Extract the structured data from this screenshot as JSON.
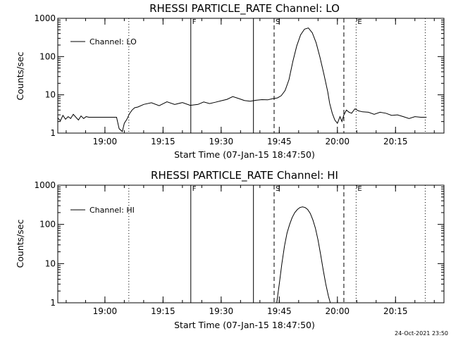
{
  "chart_data": [
    {
      "type": "line",
      "title": "RHESSI PARTICLE_RATE Channel: LO",
      "xlabel": "Start Time (07-Jan-15 18:47:50)",
      "ylabel": "Counts/sec",
      "y_scale": "log",
      "ylim": [
        1,
        1000
      ],
      "xlim": [
        "18:47:50",
        "20:27:30"
      ],
      "x_ticks": [
        "19:00",
        "19:15",
        "19:30",
        "19:45",
        "20:00",
        "20:15"
      ],
      "y_ticks": [
        "1",
        "10",
        "100",
        "1000"
      ],
      "legend": {
        "position": "top-left",
        "entries": [
          "Channel: LO"
        ]
      },
      "series": [
        {
          "name": "Channel: LO",
          "x": [
            "18:47:50",
            "18:48:30",
            "18:49:10",
            "18:49:50",
            "18:50:30",
            "18:51:10",
            "18:51:50",
            "18:52:30",
            "18:53:10",
            "18:53:50",
            "18:54:30",
            "18:55:10",
            "18:55:50",
            "18:57:00",
            "18:58:30",
            "19:00:00",
            "19:01:30",
            "19:03:00",
            "19:03:40",
            "19:04:30",
            "19:05:00",
            "19:05:40",
            "19:06:20",
            "19:07:00",
            "19:07:40",
            "19:08:30",
            "19:10:00",
            "19:12:00",
            "19:14:00",
            "19:16:00",
            "19:18:00",
            "19:20:00",
            "19:22:00",
            "19:24:00",
            "19:25:30",
            "19:27:00",
            "19:28:30",
            "19:30:00",
            "19:31:30",
            "19:33:00",
            "19:34:30",
            "19:36:00",
            "19:37:30",
            "19:39:00",
            "19:40:30",
            "19:42:00",
            "19:43:30",
            "19:44:30",
            "19:45:30",
            "19:46:30",
            "19:47:30",
            "19:48:30",
            "19:49:30",
            "19:50:30",
            "19:51:30",
            "19:52:30",
            "19:53:30",
            "19:54:30",
            "19:55:30",
            "19:56:30",
            "19:57:30",
            "19:58:00",
            "19:58:40",
            "19:59:20",
            "20:00:00",
            "20:00:40",
            "20:01:10",
            "20:01:40",
            "20:02:20",
            "20:03:00",
            "20:03:40",
            "20:04:30",
            "20:05:30",
            "20:06:30",
            "20:08:00",
            "20:09:30",
            "20:11:00",
            "20:12:30",
            "20:14:00",
            "20:15:30",
            "20:17:00",
            "20:18:30",
            "20:20:00",
            "20:21:30",
            "20:23:00"
          ],
          "values": [
            2.5,
            2.1,
            2.9,
            2.3,
            2.7,
            2.4,
            3.1,
            2.6,
            2.2,
            2.8,
            2.4,
            2.7,
            2.6,
            2.6,
            2.6,
            2.6,
            2.6,
            2.6,
            1.3,
            1.1,
            1.8,
            2.3,
            3.2,
            4.0,
            4.6,
            4.8,
            5.6,
            6.2,
            5.2,
            6.6,
            5.6,
            6.3,
            5.3,
            5.6,
            6.5,
            5.9,
            6.4,
            7.0,
            7.6,
            9.0,
            8.0,
            7.1,
            6.8,
            7.2,
            7.5,
            7.4,
            8.0,
            8.3,
            9.5,
            13.0,
            25,
            75,
            190,
            370,
            520,
            560,
            420,
            230,
            95,
            35,
            12,
            6,
            3.3,
            2.2,
            1.8,
            2.7,
            2.0,
            3.0,
            4.0,
            3.5,
            3.3,
            4.3,
            3.8,
            3.6,
            3.5,
            3.1,
            3.5,
            3.3,
            2.9,
            3.0,
            2.7,
            2.4,
            2.7,
            2.6,
            2.6
          ]
        }
      ],
      "annotations": [
        {
          "time": "19:06:10",
          "style": "dotted",
          "label": ""
        },
        {
          "time": "19:22:10",
          "style": "solid",
          "label": "F"
        },
        {
          "time": "19:38:20",
          "style": "solid",
          "label": ""
        },
        {
          "time": "19:43:40",
          "style": "dashed",
          "label": "S"
        },
        {
          "time": "20:01:40",
          "style": "dashed",
          "label": ""
        },
        {
          "time": "20:04:50",
          "style": "dotted",
          "label": "E"
        },
        {
          "time": "20:22:40",
          "style": "dotted",
          "label": ""
        }
      ]
    },
    {
      "type": "line",
      "title": "RHESSI PARTICLE_RATE Channel: HI",
      "xlabel": "Start Time (07-Jan-15 18:47:50)",
      "ylabel": "Counts/sec",
      "y_scale": "log",
      "ylim": [
        1,
        1000
      ],
      "xlim": [
        "18:47:50",
        "20:27:30"
      ],
      "x_ticks": [
        "19:00",
        "19:15",
        "19:30",
        "19:45",
        "20:00",
        "20:15"
      ],
      "y_ticks": [
        "1",
        "10",
        "100",
        "1000"
      ],
      "legend": {
        "position": "top-left",
        "entries": [
          "Channel: HI"
        ]
      },
      "series": [
        {
          "name": "Channel: HI",
          "x": [
            "19:44:20",
            "19:45:00",
            "19:45:40",
            "19:46:20",
            "19:47:00",
            "19:47:40",
            "19:48:20",
            "19:49:00",
            "19:49:40",
            "19:50:20",
            "19:51:00",
            "19:51:40",
            "19:52:20",
            "19:53:00",
            "19:53:40",
            "19:54:20",
            "19:55:00",
            "19:55:40",
            "19:56:20",
            "19:57:00",
            "19:57:40",
            "19:58:10"
          ],
          "values": [
            1.0,
            3.0,
            10,
            28,
            60,
            100,
            150,
            200,
            240,
            270,
            280,
            270,
            240,
            190,
            130,
            80,
            40,
            17,
            7,
            3,
            1.5,
            1.0
          ]
        }
      ],
      "annotations": [
        {
          "time": "19:06:10",
          "style": "dotted",
          "label": ""
        },
        {
          "time": "19:22:10",
          "style": "solid",
          "label": "F"
        },
        {
          "time": "19:38:20",
          "style": "solid",
          "label": ""
        },
        {
          "time": "19:43:40",
          "style": "dashed",
          "label": "S"
        },
        {
          "time": "20:01:40",
          "style": "dashed",
          "label": ""
        },
        {
          "time": "20:04:50",
          "style": "dotted",
          "label": "E"
        },
        {
          "time": "20:22:40",
          "style": "dotted",
          "label": ""
        }
      ]
    }
  ],
  "footer": {
    "timestamp": "24-Oct-2021 23:50"
  }
}
